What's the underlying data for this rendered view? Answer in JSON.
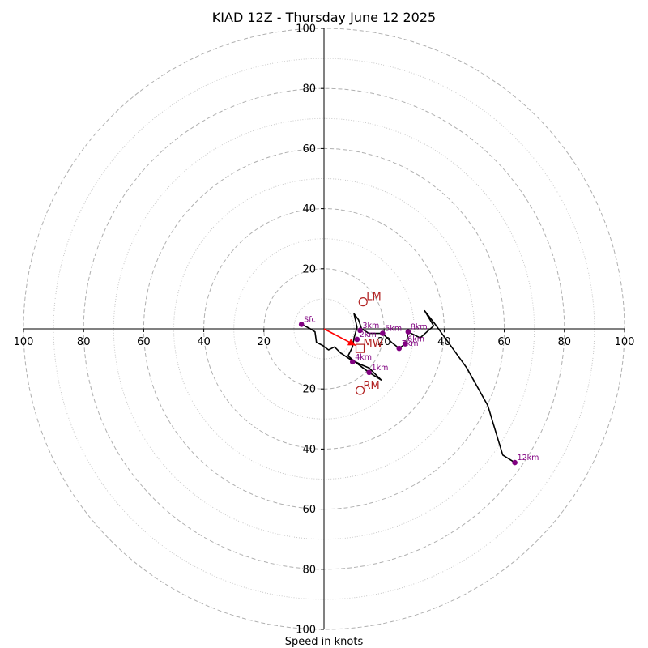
{
  "colors": {
    "hodograph": "#000000",
    "height_marker": "#800080",
    "motion": "#b22222",
    "shear_vector": "#ff0000",
    "ring_major": "#b0b0b0",
    "ring_minor": "#c8c8c8"
  },
  "chart_data": {
    "type": "hodograph",
    "title": "KIAD 12Z - Thursday June 12 2025",
    "xlabel": "Speed in knots",
    "units": "knots",
    "range": [
      -100,
      100
    ],
    "major_rings": [
      20,
      40,
      60,
      80,
      100
    ],
    "minor_rings": [
      10,
      30,
      50,
      70,
      90
    ],
    "x_tick_labels": [
      "100",
      "80",
      "60",
      "40",
      "20",
      "20",
      "40",
      "60",
      "80",
      "100"
    ],
    "y_tick_labels": [
      "100",
      "80",
      "60",
      "40",
      "20",
      "20",
      "40",
      "60",
      "80",
      "100"
    ],
    "trace": [
      [
        -7.5,
        1.5
      ],
      [
        -4.5,
        0.0
      ],
      [
        -3.0,
        -1.0
      ],
      [
        -2.5,
        -4.5
      ],
      [
        -0.5,
        -5.5
      ],
      [
        1.5,
        -7.0
      ],
      [
        3.5,
        -6.0
      ],
      [
        5.5,
        -8.0
      ],
      [
        8.5,
        -10.0
      ],
      [
        12.5,
        -12.0
      ],
      [
        15.0,
        -13.0
      ],
      [
        19.0,
        -17.0
      ],
      [
        15.0,
        -14.5
      ],
      [
        11.0,
        -11.5
      ],
      [
        8.0,
        -9.0
      ],
      [
        9.5,
        -6.0
      ],
      [
        10.0,
        -3.0
      ],
      [
        11.0,
        0.5
      ],
      [
        10.0,
        5.0
      ],
      [
        11.5,
        3.0
      ],
      [
        12.5,
        0.0
      ],
      [
        15.0,
        -1.5
      ],
      [
        19.5,
        -1.5
      ],
      [
        22.5,
        -4.5
      ],
      [
        25.0,
        -6.5
      ],
      [
        27.0,
        -5.0
      ],
      [
        27.5,
        -4.5
      ],
      [
        28.0,
        -1.0
      ],
      [
        32.0,
        -3.0
      ],
      [
        36.5,
        1.0
      ],
      [
        33.5,
        6.0
      ],
      [
        37.0,
        1.5
      ],
      [
        41.0,
        -4.0
      ],
      [
        47.5,
        -13.0
      ],
      [
        54.5,
        -25.5
      ],
      [
        59.5,
        -42.0
      ],
      [
        63.5,
        -44.5
      ]
    ],
    "height_markers": [
      {
        "label": "Sfc",
        "u": -7.5,
        "v": 1.5
      },
      {
        "label": "1km",
        "u": 15.0,
        "v": -14.5
      },
      {
        "label": "2km",
        "u": 11.0,
        "v": -3.5
      },
      {
        "label": "3km",
        "u": 12.0,
        "v": -0.5
      },
      {
        "label": "4km",
        "u": 9.5,
        "v": -11.0
      },
      {
        "label": "5km",
        "u": 19.5,
        "v": -1.5
      },
      {
        "label": "6km",
        "u": 27.0,
        "v": -5.0
      },
      {
        "label": "7km",
        "u": 25.0,
        "v": -6.5
      },
      {
        "label": "8km",
        "u": 28.0,
        "v": -1.0
      },
      {
        "label": "12km",
        "u": 63.5,
        "v": -44.5
      }
    ],
    "storm_motions": [
      {
        "label": "LM",
        "u": 13.0,
        "v": 9.0,
        "marker": "circle"
      },
      {
        "label": "RM",
        "u": 12.0,
        "v": -20.5,
        "marker": "circle"
      },
      {
        "label": "MW",
        "u": 12.0,
        "v": -6.5,
        "marker": "square"
      }
    ],
    "shear_vector": {
      "from": [
        0.0,
        0.0
      ],
      "to": [
        10.5,
        -5.5
      ]
    }
  }
}
